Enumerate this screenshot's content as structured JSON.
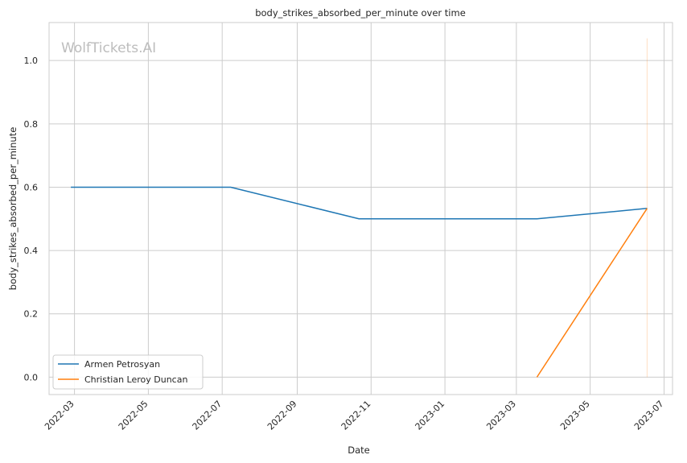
{
  "chart_data": {
    "type": "line",
    "title": "body_strikes_absorbed_per_minute over time",
    "xlabel": "Date",
    "ylabel": "body_strikes_absorbed_per_minute",
    "watermark": "WolfTickets.AI",
    "grid": true,
    "legend_position": "lower-left",
    "xlim": [
      "2022-02-08",
      "2023-07-08"
    ],
    "ylim": [
      -0.055,
      1.12
    ],
    "x_ticks": [
      "2022-03",
      "2022-05",
      "2022-07",
      "2022-09",
      "2022-11",
      "2023-01",
      "2023-03",
      "2023-05",
      "2023-07"
    ],
    "y_ticks": [
      "0.0",
      "0.2",
      "0.4",
      "0.6",
      "0.8",
      "1.0"
    ],
    "series": [
      {
        "name": "Armen Petrosyan",
        "color": "#1f77b4",
        "points": [
          {
            "x": "2022-02-26",
            "y": 0.6
          },
          {
            "x": "2022-07-08",
            "y": 0.6
          },
          {
            "x": "2022-10-22",
            "y": 0.5
          },
          {
            "x": "2023-03-18",
            "y": 0.5
          },
          {
            "x": "2023-06-17",
            "y": 0.533
          }
        ]
      },
      {
        "name": "Christian Leroy Duncan",
        "color": "#ff7f0e",
        "points": [
          {
            "x": "2023-03-18",
            "y": 0.0
          },
          {
            "x": "2023-06-17",
            "y": 0.533
          }
        ]
      }
    ],
    "vertical_marker": {
      "x": "2023-06-17",
      "y_range": [
        0.0,
        1.07
      ],
      "color": "#ff7f0e"
    }
  }
}
